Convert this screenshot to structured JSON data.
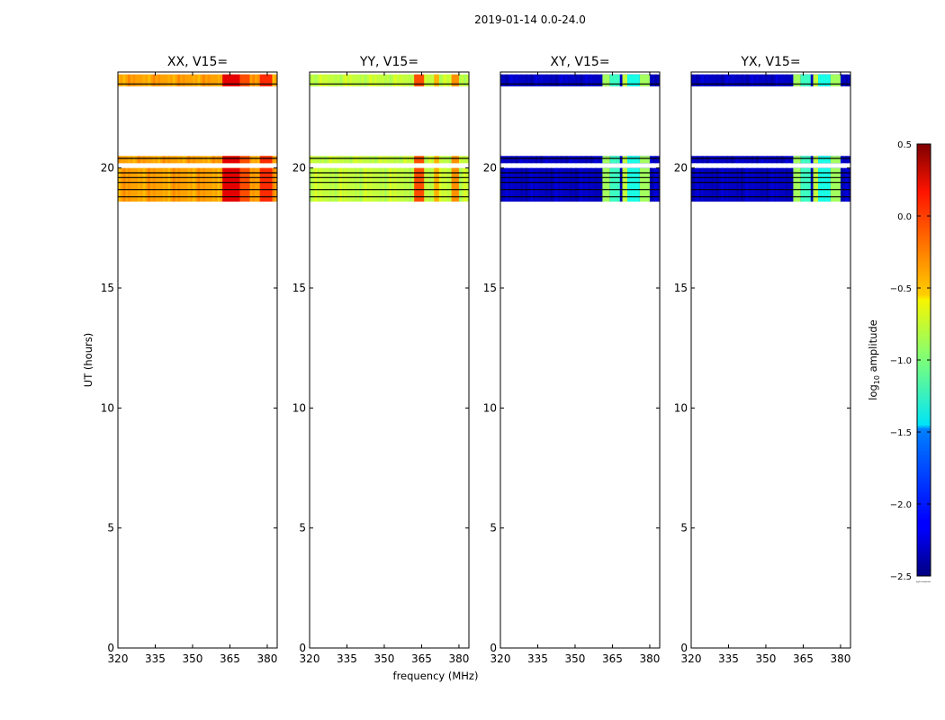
{
  "figure": {
    "suptitle": "2019-01-14 0.0-24.0",
    "xlabel": "frequency (MHz)",
    "ylabel": "UT (hours)"
  },
  "chart_data": [
    {
      "type": "heatmap",
      "title": "XX, V15=",
      "xlim": [
        320,
        384
      ],
      "ylim": [
        0,
        24
      ],
      "xticks": [
        320,
        335,
        350,
        365,
        380
      ],
      "yticks": [
        0,
        5,
        10,
        15,
        20
      ],
      "base_value": -0.35,
      "rfi_bands": [
        [
          362,
          369,
          0.2
        ],
        [
          369,
          373,
          -0.1
        ],
        [
          377,
          382,
          0.0
        ]
      ],
      "time_blocks": [
        [
          18.6,
          20.0
        ],
        [
          20.2,
          20.5
        ],
        [
          23.4,
          23.9
        ]
      ],
      "flag_lines": [
        18.8,
        19.1,
        19.4,
        19.6,
        19.8,
        20.4,
        23.5
      ]
    },
    {
      "type": "heatmap",
      "title": "YY, V15=",
      "xlim": [
        320,
        384
      ],
      "ylim": [
        0,
        24
      ],
      "xticks": [
        320,
        335,
        350,
        365,
        380
      ],
      "yticks": [
        0,
        5,
        10,
        15,
        20
      ],
      "base_value": -0.8,
      "rfi_bands": [
        [
          362,
          366,
          -0.1
        ],
        [
          370,
          372,
          -0.4
        ],
        [
          377,
          380,
          -0.3
        ]
      ],
      "time_blocks": [
        [
          18.6,
          20.0
        ],
        [
          20.2,
          20.5
        ],
        [
          23.4,
          23.9
        ]
      ],
      "flag_lines": [
        18.8,
        19.1,
        19.4,
        19.6,
        19.8,
        20.4,
        23.5
      ]
    },
    {
      "type": "heatmap",
      "title": "XY, V15=",
      "xlim": [
        320,
        384
      ],
      "ylim": [
        0,
        24
      ],
      "xticks": [
        320,
        335,
        350,
        365,
        380
      ],
      "yticks": [
        0,
        5,
        10,
        15,
        20
      ],
      "base_value": -2.3,
      "rfi_bands": [
        [
          361,
          364,
          -0.9
        ],
        [
          364,
          368,
          -1.2
        ],
        [
          369,
          371,
          -0.8
        ],
        [
          371,
          376,
          -1.3
        ],
        [
          376,
          380,
          -0.9
        ]
      ],
      "time_blocks": [
        [
          18.6,
          20.0
        ],
        [
          20.2,
          20.5
        ],
        [
          23.4,
          23.9
        ]
      ],
      "flag_lines": [
        18.8,
        19.1,
        19.4,
        19.6,
        19.8,
        20.4,
        23.5
      ]
    },
    {
      "type": "heatmap",
      "title": "YX, V15=",
      "xlim": [
        320,
        384
      ],
      "ylim": [
        0,
        24
      ],
      "xticks": [
        320,
        335,
        350,
        365,
        380
      ],
      "yticks": [
        0,
        5,
        10,
        15,
        20
      ],
      "base_value": -2.3,
      "rfi_bands": [
        [
          361,
          364,
          -0.9
        ],
        [
          364,
          368,
          -1.2
        ],
        [
          369,
          371,
          -0.8
        ],
        [
          371,
          376,
          -1.3
        ],
        [
          376,
          380,
          -0.9
        ]
      ],
      "time_blocks": [
        [
          18.6,
          20.0
        ],
        [
          20.2,
          20.5
        ],
        [
          23.4,
          23.9
        ]
      ],
      "flag_lines": [
        18.8,
        19.1,
        19.4,
        19.6,
        19.8,
        20.4,
        23.5
      ]
    }
  ],
  "colorbar": {
    "label": "log10 amplitude",
    "range": [
      -2.5,
      0.5
    ],
    "ticks": [
      {
        "value": 0.5,
        "label": "0.5"
      },
      {
        "value": 0.0,
        "label": "0.0"
      },
      {
        "value": -0.5,
        "label": "−0.5"
      },
      {
        "value": -1.0,
        "label": "−1.0"
      },
      {
        "value": -1.5,
        "label": "−1.5"
      },
      {
        "value": -2.0,
        "label": "−2.0"
      },
      {
        "value": -2.5,
        "label": "−2.5"
      }
    ]
  }
}
